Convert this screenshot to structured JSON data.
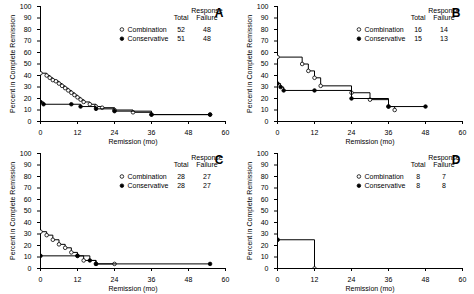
{
  "chart_data": [
    {
      "type": "line",
      "title": "A",
      "xlabel": "Remission (mo)",
      "ylabel": "Percent in Complete Remission",
      "xlim": [
        0,
        60
      ],
      "xticks": [
        0,
        12,
        24,
        36,
        48,
        60
      ],
      "ylim": [
        0,
        100
      ],
      "yticks": [
        0,
        10,
        20,
        30,
        40,
        50,
        60,
        70,
        80,
        90,
        100
      ],
      "table_headers": [
        "Total",
        "Response Failure"
      ],
      "series": [
        {
          "name": "Combination",
          "color": "#000000",
          "marker": "circle_open",
          "line_style": "solid",
          "total": 52,
          "failures": 48,
          "x": [
            0,
            2,
            3,
            4,
            5,
            6,
            7,
            8,
            9,
            10,
            11,
            12,
            13,
            14,
            16,
            18,
            20,
            24,
            30,
            36,
            55
          ],
          "values": [
            42,
            40,
            38,
            36,
            35,
            33,
            31,
            29,
            27,
            25,
            23,
            21,
            19,
            17,
            15,
            13,
            12,
            10,
            8,
            6,
            6
          ]
        },
        {
          "name": "Conservative",
          "color": "#000000",
          "marker": "circle_filled",
          "line_style": "solid",
          "total": 51,
          "failures": 48,
          "x": [
            0,
            1,
            10,
            13,
            18,
            24,
            36,
            55
          ],
          "values": [
            17,
            15,
            15,
            13,
            11,
            9,
            6,
            6
          ]
        }
      ]
    },
    {
      "type": "line",
      "title": "B",
      "xlabel": "Remission (mo)",
      "ylabel": "Percent in Complete Remission",
      "xlim": [
        0,
        60
      ],
      "xticks": [
        0,
        12,
        24,
        36,
        48,
        60
      ],
      "ylim": [
        0,
        100
      ],
      "yticks": [
        0,
        10,
        20,
        30,
        40,
        50,
        60,
        70,
        80,
        90,
        100
      ],
      "table_headers": [
        "Total",
        "Response Failure"
      ],
      "series": [
        {
          "name": "Combination",
          "color": "#000000",
          "marker": "circle_open",
          "line_style": "solid",
          "total": 16,
          "failures": 14,
          "x": [
            0,
            8,
            10,
            12,
            14,
            24,
            30,
            36,
            38
          ],
          "values": [
            56,
            50,
            44,
            38,
            31,
            25,
            19,
            13,
            10
          ]
        },
        {
          "name": "Conservative",
          "color": "#000000",
          "marker": "circle_filled",
          "line_style": "solid",
          "total": 15,
          "failures": 13,
          "x": [
            0,
            1,
            2,
            12,
            24,
            36,
            48
          ],
          "values": [
            33,
            30,
            27,
            27,
            20,
            13,
            13
          ]
        }
      ]
    },
    {
      "type": "line",
      "title": "C",
      "xlabel": "Remission (mo)",
      "ylabel": "Percent in Complete Remission",
      "xlim": [
        0,
        60
      ],
      "xticks": [
        0,
        12,
        24,
        36,
        48,
        60
      ],
      "ylim": [
        0,
        100
      ],
      "yticks": [
        0,
        10,
        20,
        30,
        40,
        50,
        60,
        70,
        80,
        90,
        100
      ],
      "table_headers": [
        "Total",
        "Response Failure"
      ],
      "series": [
        {
          "name": "Combination",
          "color": "#000000",
          "marker": "circle_open",
          "line_style": "solid",
          "total": 28,
          "failures": 27,
          "x": [
            0,
            2,
            4,
            6,
            8,
            10,
            12,
            14,
            18,
            24
          ],
          "values": [
            32,
            29,
            25,
            21,
            18,
            14,
            11,
            7,
            4,
            4
          ]
        },
        {
          "name": "Conservative",
          "color": "#000000",
          "marker": "circle_filled",
          "line_style": "solid",
          "total": 28,
          "failures": 27,
          "x": [
            0,
            12,
            16,
            18,
            55
          ],
          "values": [
            11,
            11,
            7,
            4,
            4
          ]
        }
      ]
    },
    {
      "type": "line",
      "title": "D",
      "xlabel": "Remission (mo)",
      "ylabel": "Percent in Complete Remission",
      "xlim": [
        0,
        60
      ],
      "xticks": [
        0,
        12,
        24,
        36,
        48,
        60
      ],
      "ylim": [
        0,
        100
      ],
      "yticks": [
        0,
        10,
        20,
        30,
        40,
        50,
        60,
        70,
        80,
        90,
        100
      ],
      "table_headers": [
        "Total",
        "Response Failure"
      ],
      "series": [
        {
          "name": "Combination",
          "color": "#000000",
          "marker": "circle_open",
          "line_style": "solid",
          "total": 8,
          "failures": 7,
          "x": [
            0,
            12
          ],
          "values": [
            25,
            0
          ]
        },
        {
          "name": "Conservative",
          "color": "#000000",
          "marker": "circle_filled",
          "line_style": "solid",
          "total": 8,
          "failures": 8,
          "x": [
            0
          ],
          "values": [
            25
          ]
        }
      ]
    }
  ]
}
